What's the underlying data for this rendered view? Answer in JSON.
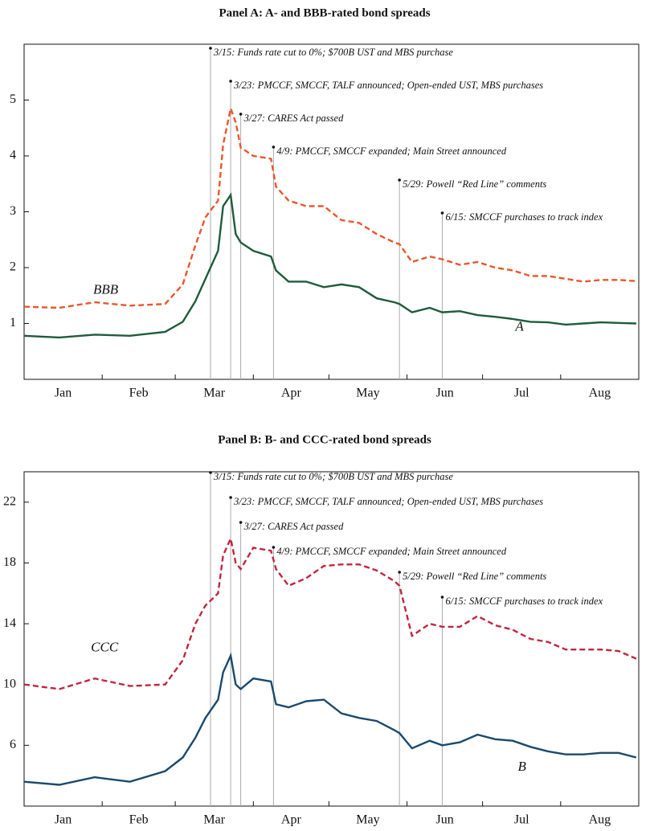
{
  "chart_data": [
    {
      "type": "line",
      "title": "Panel A: A- and BBB-rated bond spreads",
      "x": [
        "1/1",
        "1/15",
        "1/29",
        "2/12",
        "2/26",
        "3/4",
        "3/9",
        "3/13",
        "3/18",
        "3/20",
        "3/23",
        "3/25",
        "3/27",
        "4/1",
        "4/8",
        "4/10",
        "4/15",
        "4/22",
        "4/29",
        "5/6",
        "5/13",
        "5/20",
        "5/27",
        "5/29",
        "6/3",
        "6/10",
        "6/15",
        "6/22",
        "6/29",
        "7/6",
        "7/13",
        "7/20",
        "7/27",
        "8/3",
        "8/10",
        "8/17",
        "8/24",
        "8/31"
      ],
      "xlim": [
        "1/1",
        "8/31"
      ],
      "categories": [
        "Jan",
        "Feb",
        "Mar",
        "Apr",
        "May",
        "Jun",
        "Jul",
        "Aug"
      ],
      "series": [
        {
          "name": "BBB",
          "color": "#e8572c",
          "dashed": true,
          "values": [
            1.3,
            1.28,
            1.38,
            1.32,
            1.35,
            1.7,
            2.4,
            2.9,
            3.2,
            4.2,
            4.85,
            4.6,
            4.15,
            4.0,
            3.95,
            3.45,
            3.2,
            3.1,
            3.1,
            2.85,
            2.8,
            2.6,
            2.45,
            2.42,
            2.1,
            2.2,
            2.15,
            2.05,
            2.1,
            2.0,
            1.95,
            1.85,
            1.85,
            1.8,
            1.75,
            1.78,
            1.78,
            1.76
          ]
        },
        {
          "name": "A",
          "color": "#1f5c3a",
          "dashed": false,
          "values": [
            0.78,
            0.75,
            0.8,
            0.78,
            0.85,
            1.03,
            1.4,
            1.8,
            2.3,
            3.1,
            3.3,
            2.6,
            2.45,
            2.3,
            2.2,
            1.95,
            1.75,
            1.75,
            1.65,
            1.7,
            1.65,
            1.45,
            1.38,
            1.35,
            1.2,
            1.28,
            1.2,
            1.22,
            1.15,
            1.12,
            1.08,
            1.03,
            1.02,
            0.98,
            1.0,
            1.02,
            1.01,
            1.0
          ]
        }
      ],
      "ylim": [
        0,
        6
      ],
      "yticks": [
        1,
        2,
        3,
        4,
        5
      ],
      "annotations": [
        {
          "x": "3/15",
          "text": "3/15: Funds rate cut to 0%; $700B UST and MBS purchase"
        },
        {
          "x": "3/23",
          "text": "3/23: PMCCF, SMCCF, TALF announced; Open-ended UST, MBS purchases"
        },
        {
          "x": "3/27",
          "text": "3/27: CARES Act passed"
        },
        {
          "x": "4/9",
          "text": "4/9: PMCCF, SMCCF expanded; Main Street announced"
        },
        {
          "x": "5/29",
          "text": "5/29: Powell “Red Line” comments"
        },
        {
          "x": "6/15",
          "text": "6/15: SMCCF purchases to track index"
        }
      ]
    },
    {
      "type": "line",
      "title": "Panel B: B- and CCC-rated bond spreads",
      "x": [
        "1/1",
        "1/15",
        "1/29",
        "2/12",
        "2/26",
        "3/4",
        "3/9",
        "3/13",
        "3/18",
        "3/20",
        "3/23",
        "3/25",
        "3/27",
        "4/1",
        "4/8",
        "4/10",
        "4/15",
        "4/22",
        "4/29",
        "5/6",
        "5/13",
        "5/20",
        "5/27",
        "5/29",
        "6/3",
        "6/10",
        "6/15",
        "6/22",
        "6/29",
        "7/6",
        "7/13",
        "7/20",
        "7/27",
        "8/3",
        "8/10",
        "8/17",
        "8/24",
        "8/31"
      ],
      "xlim": [
        "1/1",
        "8/31"
      ],
      "categories": [
        "Jan",
        "Feb",
        "Mar",
        "Apr",
        "May",
        "Jun",
        "Jul",
        "Aug"
      ],
      "series": [
        {
          "name": "CCC",
          "color": "#c0273f",
          "dashed": true,
          "values": [
            10.0,
            9.7,
            10.4,
            9.9,
            10.0,
            11.6,
            14.0,
            15.2,
            16.0,
            18.5,
            19.6,
            18.0,
            17.6,
            19.0,
            18.8,
            17.6,
            16.5,
            17.0,
            17.8,
            17.9,
            17.9,
            17.5,
            16.8,
            16.5,
            13.2,
            14.0,
            13.8,
            13.8,
            14.5,
            13.9,
            13.6,
            13.0,
            12.8,
            12.3,
            12.3,
            12.3,
            12.2,
            11.7
          ]
        },
        {
          "name": "B",
          "color": "#1a4a6e",
          "dashed": false,
          "values": [
            3.6,
            3.4,
            3.9,
            3.6,
            4.3,
            5.2,
            6.5,
            7.8,
            9.0,
            10.8,
            11.9,
            10.0,
            9.7,
            10.4,
            10.2,
            8.7,
            8.5,
            8.9,
            9.0,
            8.1,
            7.8,
            7.6,
            7.0,
            6.8,
            5.8,
            6.3,
            6.0,
            6.2,
            6.7,
            6.4,
            6.3,
            5.9,
            5.6,
            5.4,
            5.4,
            5.5,
            5.5,
            5.2
          ]
        }
      ],
      "ylim": [
        2,
        24
      ],
      "yticks": [
        6,
        10,
        14,
        18,
        22
      ],
      "annotations": [
        {
          "x": "3/15",
          "text": "3/15: Funds rate cut to 0%; $700B UST and MBS purchase"
        },
        {
          "x": "3/23",
          "text": "3/23: PMCCF, SMCCF, TALF announced; Open-ended UST, MBS purchases"
        },
        {
          "x": "3/27",
          "text": "3/27: CARES Act passed"
        },
        {
          "x": "4/9",
          "text": "4/9: PMCCF, SMCCF expanded; Main Street announced"
        },
        {
          "x": "5/29",
          "text": "5/29: Powell “Red Line” comments"
        },
        {
          "x": "6/15",
          "text": "6/15: SMCCF purchases to track index"
        }
      ]
    }
  ]
}
